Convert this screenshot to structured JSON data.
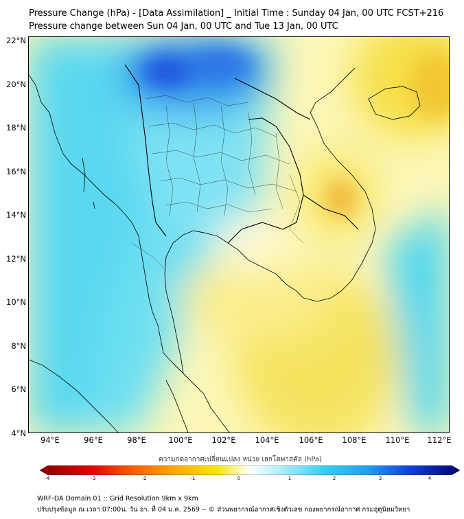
{
  "header": {
    "title_line1": "Pressure Change (hPa) - [Data Assimilation] _ Initial Time : Sunday 04 Jan, 00 UTC FCST+216",
    "title_line2": "Pressure change between Sun 04 Jan, 00 UTC and Tue 13 Jan, 00 UTC"
  },
  "map": {
    "lat_labels": [
      "22°N",
      "20°N",
      "18°N",
      "16°N",
      "14°N",
      "12°N",
      "10°N",
      "8°N",
      "6°N",
      "4°N"
    ],
    "lon_labels": [
      "94°E",
      "96°E",
      "98°E",
      "100°E",
      "102°E",
      "104°E",
      "106°E",
      "108°E",
      "110°E",
      "112°E"
    ]
  },
  "colorbar": {
    "title": "ความกดอากาศเปลี่ยนแปลง หน่วย เฮกโตพาสคัล (hPa)",
    "ticks": [
      "-4",
      "-3",
      "-2",
      "-1",
      "0",
      "1",
      "2",
      "3",
      "4"
    ],
    "min": -4,
    "max": 4
  },
  "footer": {
    "line1": "WRF-DA Domain 01 :: Grid Resolution 9km x 9km",
    "line2": "ปรับปรุงข้อมูล ณ เวลา 07:00น. วัน อา. ที่ 04 ม.ค. 2569 -- © ส่วนพยากรณ์อากาศเชิงตัวเลข กองพยากรณ์อากาศ กรมอุตุนิยมวิทยา"
  },
  "colors": {
    "neg_strong": "#8b0000",
    "neg": "#ff2000",
    "neg_mid": "#ff9000",
    "neg_weak": "#f5e500",
    "neutral": "#ffffff",
    "pos_weak": "#a8ecf8",
    "pos": "#20c8f0",
    "pos_mid": "#2060f0",
    "pos_strong": "#000070"
  }
}
